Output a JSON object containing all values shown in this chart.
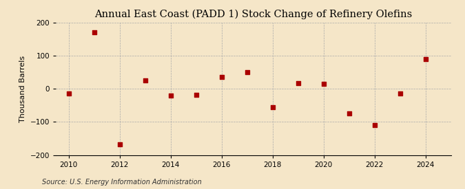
{
  "title": "Annual East Coast (PADD 1) Stock Change of Refinery Olefins",
  "ylabel": "Thousand Barrels",
  "source_text": "Source: U.S. Energy Information Administration",
  "years": [
    2010,
    2011,
    2012,
    2013,
    2014,
    2015,
    2016,
    2017,
    2018,
    2019,
    2020,
    2021,
    2022,
    2023,
    2024
  ],
  "values": [
    -15,
    170,
    -168,
    25,
    -20,
    -18,
    35,
    50,
    -55,
    18,
    15,
    -75,
    -110,
    -15,
    90
  ],
  "marker_color": "#aa0000",
  "marker_size": 16,
  "background_color": "#f5e6c8",
  "grid_color": "#aaaaaa",
  "xlim": [
    2009.5,
    2025.0
  ],
  "ylim": [
    -200,
    200
  ],
  "yticks": [
    -200,
    -100,
    0,
    100,
    200
  ],
  "xticks": [
    2010,
    2012,
    2014,
    2016,
    2018,
    2020,
    2022,
    2024
  ],
  "title_fontsize": 10.5,
  "label_fontsize": 8,
  "tick_fontsize": 7.5,
  "source_fontsize": 7
}
